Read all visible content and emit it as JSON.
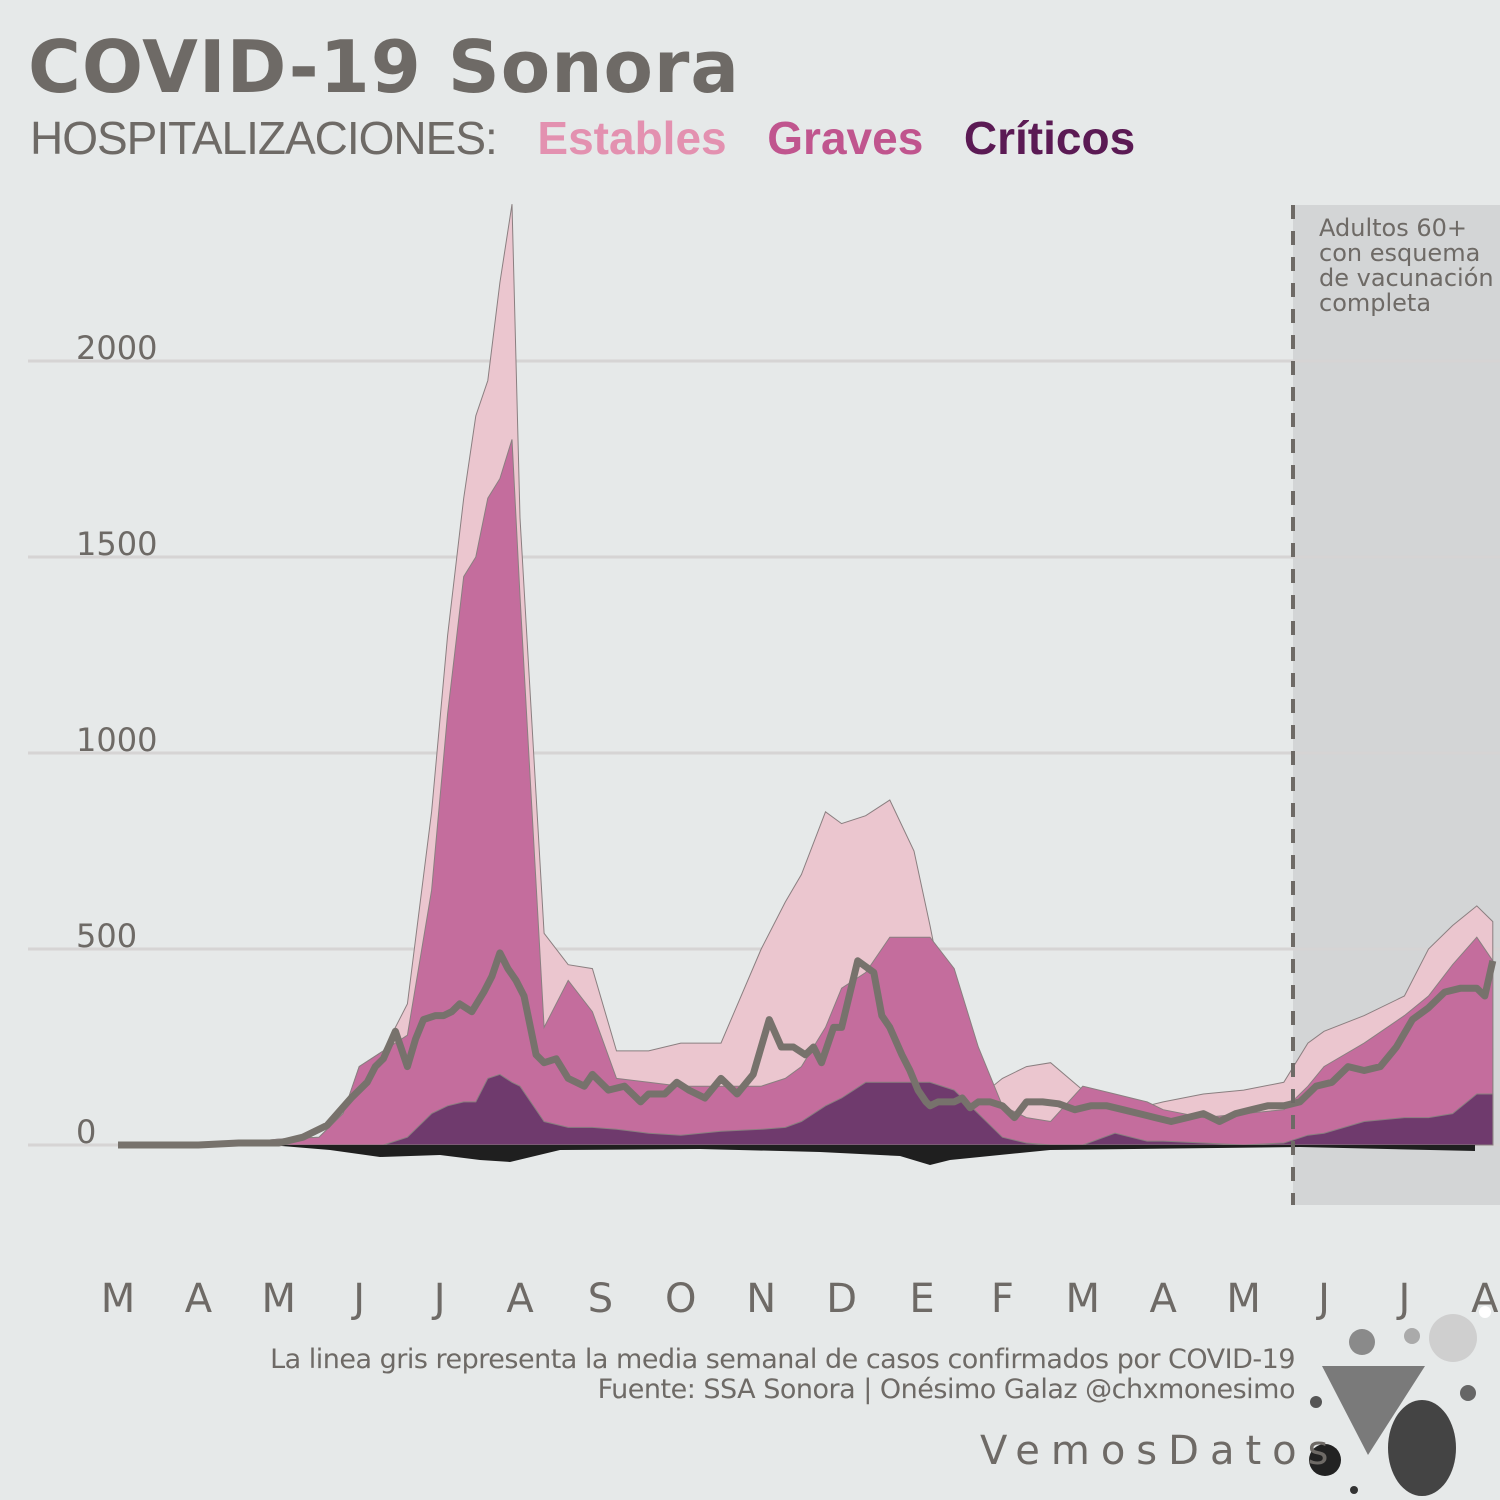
{
  "header": {
    "title": "COVID-19 Sonora",
    "subtitle": "HOSPITALIZACIONES:"
  },
  "legend": [
    {
      "name": "Estables",
      "color": "#e59ab4"
    },
    {
      "name": "Graves",
      "color": "#c0558e"
    },
    {
      "name": "Críticos",
      "color": "#5b1a54"
    }
  ],
  "annotation": [
    "Adultos 60+",
    "con esquema",
    "de vacunación",
    "completa"
  ],
  "footer": {
    "note": "La linea gris representa la media semanal de casos confirmados por COVID-19",
    "source": "Fuente: SSA Sonora | Onésimo Galaz @chxmonesimo",
    "brand": "VemosDatos"
  },
  "chart_data": {
    "type": "area",
    "x_month_labels": [
      "M",
      "A",
      "M",
      "J",
      "J",
      "A",
      "S",
      "O",
      "N",
      "D",
      "E",
      "F",
      "M",
      "A",
      "M",
      "J",
      "J",
      "A"
    ],
    "ylim": [
      0,
      2400
    ],
    "yticks": [
      0,
      500,
      1000,
      1500,
      2000
    ],
    "grid": true,
    "x": [
      0,
      0.5,
      1,
      1.5,
      2,
      2.5,
      2.8,
      3,
      3.3,
      3.6,
      3.9,
      4.1,
      4.3,
      4.45,
      4.6,
      4.75,
      4.9,
      5,
      5.3,
      5.6,
      5.9,
      6.2,
      6.6,
      7,
      7.5,
      8,
      8.3,
      8.5,
      8.8,
      9,
      9.3,
      9.6,
      9.9,
      10.1,
      10.4,
      10.7,
      11,
      11.3,
      11.6,
      12,
      12.4,
      12.8,
      13,
      13.5,
      14,
      14.5,
      14.8,
      15,
      15.5,
      16,
      16.3,
      16.6,
      16.9,
      17.1
    ],
    "series": [
      {
        "name": "Críticos",
        "color": "#5b1a54",
        "values": [
          0,
          0,
          0,
          0,
          0,
          0,
          0,
          0,
          0,
          20,
          80,
          100,
          110,
          110,
          170,
          180,
          160,
          150,
          60,
          45,
          45,
          40,
          30,
          25,
          35,
          40,
          45,
          60,
          100,
          120,
          160,
          160,
          160,
          160,
          140,
          80,
          20,
          5,
          0,
          0,
          30,
          10,
          10,
          5,
          0,
          5,
          25,
          30,
          60,
          70,
          70,
          80,
          130,
          130
        ]
      },
      {
        "name": "Graves",
        "color": "#c0558e",
        "values": [
          0,
          0,
          5,
          5,
          15,
          20,
          80,
          200,
          240,
          280,
          650,
          1100,
          1450,
          1500,
          1650,
          1700,
          1800,
          1400,
          300,
          420,
          340,
          170,
          160,
          150,
          150,
          150,
          170,
          200,
          300,
          400,
          440,
          530,
          530,
          530,
          450,
          250,
          100,
          70,
          60,
          150,
          130,
          110,
          90,
          70,
          80,
          90,
          150,
          200,
          260,
          330,
          380,
          460,
          530,
          470
        ]
      },
      {
        "name": "Estables",
        "color": "#e59ab4",
        "values": [
          0,
          0,
          5,
          5,
          15,
          20,
          80,
          200,
          240,
          360,
          850,
          1300,
          1650,
          1860,
          1950,
          2200,
          2400,
          1600,
          540,
          460,
          450,
          240,
          240,
          260,
          260,
          500,
          620,
          690,
          850,
          820,
          840,
          880,
          750,
          560,
          250,
          120,
          170,
          200,
          210,
          140,
          90,
          100,
          110,
          130,
          140,
          160,
          260,
          290,
          330,
          380,
          500,
          560,
          610,
          570
        ]
      }
    ],
    "line": {
      "name": "Media semanal de casos confirmados",
      "x": [
        0,
        1,
        1.5,
        2,
        2.3,
        2.6,
        2.9,
        3.1,
        3.2,
        3.3,
        3.45,
        3.6,
        3.7,
        3.8,
        3.95,
        4.05,
        4.15,
        4.25,
        4.4,
        4.55,
        4.65,
        4.75,
        4.85,
        4.95,
        5.05,
        5.2,
        5.3,
        5.45,
        5.6,
        5.8,
        5.9,
        6.1,
        6.3,
        6.5,
        6.6,
        6.8,
        6.95,
        7.1,
        7.3,
        7.5,
        7.7,
        7.9,
        8.1,
        8.25,
        8.4,
        8.55,
        8.65,
        8.75,
        8.9,
        9,
        9.2,
        9.4,
        9.5,
        9.6,
        9.75,
        9.85,
        9.95,
        10.05,
        10.1,
        10.2,
        10.3,
        10.4,
        10.5,
        10.6,
        10.7,
        10.85,
        11,
        11.15,
        11.3,
        11.5,
        11.7,
        11.9,
        12.1,
        12.3,
        12.5,
        12.7,
        12.9,
        13.1,
        13.3,
        13.5,
        13.7,
        13.9,
        14.1,
        14.3,
        14.5,
        14.7,
        14.9,
        15.1,
        15.3,
        15.5,
        15.7,
        15.9,
        16.1,
        16.3,
        16.5,
        16.7,
        16.9,
        17,
        17.1
      ],
      "values": [
        0,
        0,
        5,
        5,
        20,
        50,
        120,
        160,
        200,
        220,
        290,
        200,
        270,
        320,
        330,
        330,
        340,
        360,
        340,
        390,
        430,
        490,
        450,
        420,
        380,
        230,
        210,
        220,
        170,
        150,
        180,
        140,
        150,
        110,
        130,
        130,
        160,
        140,
        120,
        170,
        130,
        180,
        320,
        250,
        250,
        230,
        250,
        210,
        300,
        300,
        470,
        440,
        330,
        300,
        230,
        190,
        140,
        110,
        100,
        110,
        110,
        110,
        120,
        95,
        110,
        110,
        100,
        70,
        110,
        110,
        105,
        90,
        100,
        100,
        90,
        80,
        70,
        60,
        70,
        80,
        60,
        80,
        90,
        100,
        100,
        110,
        150,
        160,
        200,
        190,
        200,
        250,
        320,
        350,
        390,
        400,
        400,
        380,
        470
      ]
    }
  }
}
